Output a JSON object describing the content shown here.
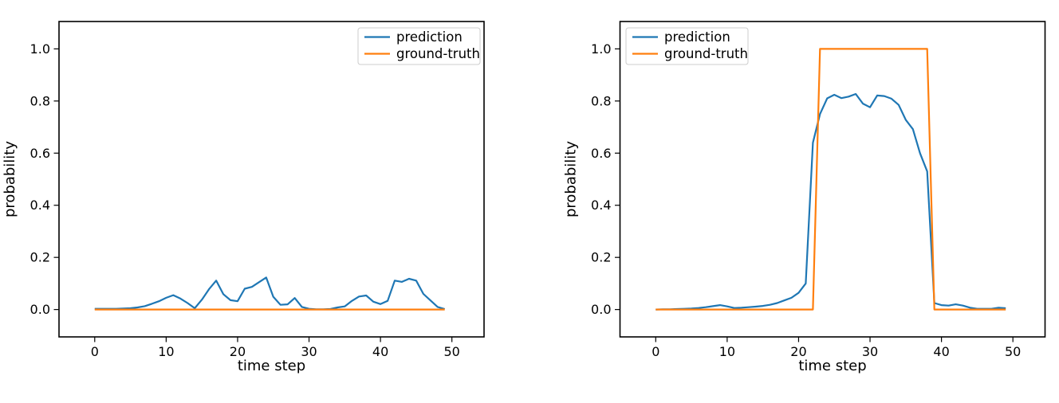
{
  "figure": {
    "background": "#ffffff"
  },
  "chart_data": [
    {
      "type": "line",
      "title": "",
      "xlabel": "time step",
      "ylabel": "probability",
      "xlim": [
        -5,
        54.5
      ],
      "ylim": [
        -0.105,
        1.105
      ],
      "xticks": [
        0,
        10,
        20,
        30,
        40,
        50
      ],
      "yticks": [
        0.0,
        0.2,
        0.4,
        0.6,
        0.8,
        1.0
      ],
      "ytick_labels": [
        "0.0",
        "0.2",
        "0.4",
        "0.6",
        "0.8",
        "1.0"
      ],
      "grid": false,
      "legend": {
        "position": "upper-right",
        "entries": [
          "prediction",
          "ground-truth"
        ]
      },
      "x": [
        0,
        1,
        2,
        3,
        4,
        5,
        6,
        7,
        8,
        9,
        10,
        11,
        12,
        13,
        14,
        15,
        16,
        17,
        18,
        19,
        20,
        21,
        22,
        23,
        24,
        25,
        26,
        27,
        28,
        29,
        30,
        31,
        32,
        33,
        34,
        35,
        36,
        37,
        38,
        39,
        40,
        41,
        42,
        43,
        44,
        45,
        46,
        47,
        48,
        49
      ],
      "series": [
        {
          "name": "prediction",
          "color": "#1f77b4",
          "values": [
            0.003,
            0.003,
            0.003,
            0.003,
            0.004,
            0.005,
            0.008,
            0.013,
            0.022,
            0.032,
            0.045,
            0.055,
            0.042,
            0.025,
            0.005,
            0.038,
            0.078,
            0.111,
            0.059,
            0.036,
            0.032,
            0.08,
            0.087,
            0.105,
            0.123,
            0.049,
            0.018,
            0.02,
            0.044,
            0.01,
            0.003,
            0.001,
            0.001,
            0.002,
            0.008,
            0.012,
            0.033,
            0.05,
            0.054,
            0.03,
            0.021,
            0.033,
            0.111,
            0.106,
            0.118,
            0.111,
            0.06,
            0.035,
            0.01,
            0.002
          ]
        },
        {
          "name": "ground-truth",
          "color": "#ff7f0e",
          "values": [
            0,
            0,
            0,
            0,
            0,
            0,
            0,
            0,
            0,
            0,
            0,
            0,
            0,
            0,
            0,
            0,
            0,
            0,
            0,
            0,
            0,
            0,
            0,
            0,
            0,
            0,
            0,
            0,
            0,
            0,
            0,
            0,
            0,
            0,
            0,
            0,
            0,
            0,
            0,
            0,
            0,
            0,
            0,
            0,
            0,
            0,
            0,
            0,
            0,
            0
          ]
        }
      ]
    },
    {
      "type": "line",
      "title": "",
      "xlabel": "time step",
      "ylabel": "probability",
      "xlim": [
        -5,
        54.5
      ],
      "ylim": [
        -0.105,
        1.105
      ],
      "xticks": [
        0,
        10,
        20,
        30,
        40,
        50
      ],
      "yticks": [
        0.0,
        0.2,
        0.4,
        0.6,
        0.8,
        1.0
      ],
      "ytick_labels": [
        "0.0",
        "0.2",
        "0.4",
        "0.6",
        "0.8",
        "1.0"
      ],
      "grid": false,
      "legend": {
        "position": "upper-left",
        "entries": [
          "prediction",
          "ground-truth"
        ]
      },
      "x": [
        0,
        1,
        2,
        3,
        4,
        5,
        6,
        7,
        8,
        9,
        10,
        11,
        12,
        13,
        14,
        15,
        16,
        17,
        18,
        19,
        20,
        21,
        22,
        23,
        24,
        25,
        26,
        27,
        28,
        29,
        30,
        31,
        32,
        33,
        34,
        35,
        36,
        37,
        38,
        39,
        40,
        41,
        42,
        43,
        44,
        45,
        46,
        47,
        48,
        49
      ],
      "series": [
        {
          "name": "prediction",
          "color": "#1f77b4",
          "values": [
            0.0,
            0.001,
            0.001,
            0.002,
            0.003,
            0.004,
            0.006,
            0.009,
            0.013,
            0.017,
            0.012,
            0.006,
            0.007,
            0.009,
            0.011,
            0.014,
            0.018,
            0.025,
            0.035,
            0.045,
            0.064,
            0.1,
            0.64,
            0.75,
            0.81,
            0.824,
            0.811,
            0.817,
            0.827,
            0.79,
            0.776,
            0.821,
            0.819,
            0.809,
            0.785,
            0.728,
            0.692,
            0.6,
            0.53,
            0.025,
            0.017,
            0.015,
            0.02,
            0.015,
            0.007,
            0.003,
            0.003,
            0.003,
            0.007,
            0.005
          ]
        },
        {
          "name": "ground-truth",
          "color": "#ff7f0e",
          "values": [
            0,
            0,
            0,
            0,
            0,
            0,
            0,
            0,
            0,
            0,
            0,
            0,
            0,
            0,
            0,
            0,
            0,
            0,
            0,
            0,
            0,
            0,
            0,
            1,
            1,
            1,
            1,
            1,
            1,
            1,
            1,
            1,
            1,
            1,
            1,
            1,
            1,
            1,
            1,
            0,
            0,
            0,
            0,
            0,
            0,
            0,
            0,
            0,
            0,
            0
          ]
        }
      ]
    }
  ]
}
